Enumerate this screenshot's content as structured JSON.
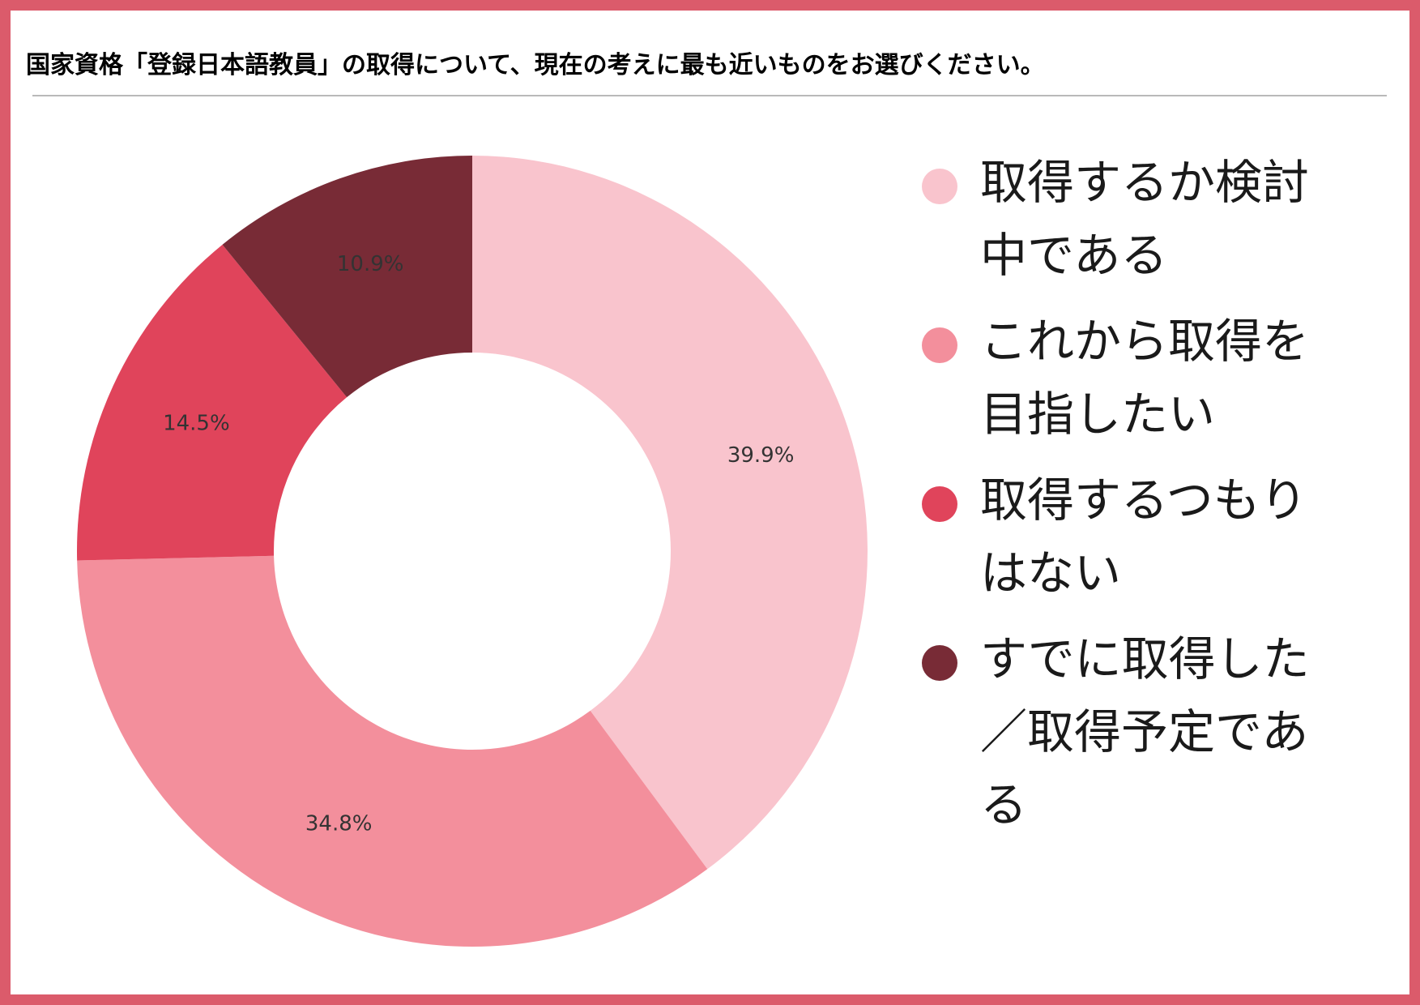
{
  "title": "国家資格「登録日本語教員」の取得について、現在の考えに最も近いものをお選びください。",
  "colors": {
    "frame": "#db5b6b",
    "rule": "#b9b9b9"
  },
  "chart_data": {
    "type": "pie",
    "donut": true,
    "unit": "%",
    "legend_position": "right",
    "slices": [
      {
        "label": "取得するか検討中である",
        "value": 39.9,
        "display": "39.9%",
        "color": "#f9c4cd"
      },
      {
        "label": "これから取得を目指したい",
        "value": 34.8,
        "display": "34.8%",
        "color": "#f38f9c"
      },
      {
        "label": "取得するつもりはない",
        "value": 14.5,
        "display": "14.5%",
        "color": "#e0445b"
      },
      {
        "label": "すでに取得した／取得予定である",
        "value": 10.9,
        "display": "10.9%",
        "color": "#782b36"
      }
    ]
  },
  "legend": {
    "items": [
      {
        "lines": [
          "取得するか検討",
          "中である"
        ]
      },
      {
        "lines": [
          "これから取得を",
          "目指したい"
        ]
      },
      {
        "lines": [
          "取得するつもり",
          "はない"
        ]
      },
      {
        "lines": [
          "すでに取得した",
          "／取得予定であ",
          "る"
        ]
      }
    ]
  }
}
